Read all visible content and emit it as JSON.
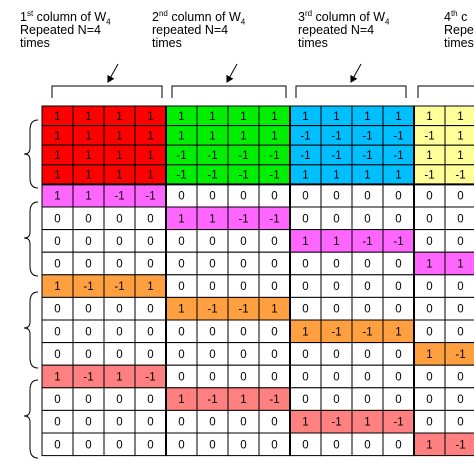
{
  "colors": {
    "red": "#ff0000",
    "green": "#00ee00",
    "blue": "#00bfff",
    "yellow": "#ffff99",
    "magenta": "#ff66ff",
    "orange": "#ffa040",
    "pink": "#ff8080",
    "white": "#ffffff"
  },
  "captions": [
    {
      "line1_prefix": "1",
      "line1_sup": "st",
      "line1_mid": " column of W",
      "line1_sub": "4",
      "line2": "Repeated N=4",
      "line3": "times"
    },
    {
      "line1_prefix": "2",
      "line1_sup": "nd",
      "line1_mid": " column of W",
      "line1_sub": "4",
      "line2": "repeated N=4",
      "line3": "times"
    },
    {
      "line1_prefix": "3",
      "line1_sup": "rd",
      "line1_mid": " column of W",
      "line1_sub": "4",
      "line2": "repeated N=4",
      "line3": "times"
    },
    {
      "line1_prefix": "4",
      "line1_sup": "th",
      "line1_mid": " c",
      "line1_sub": "",
      "line2": "Repeate",
      "line3": "times"
    }
  ],
  "matrix": {
    "rows": [
      {
        "values": [
          "1",
          "1",
          "1",
          "1",
          "1",
          "1",
          "1",
          "1",
          "1",
          "1",
          "1",
          "1",
          "1",
          "1"
        ],
        "colors": [
          "red",
          "red",
          "red",
          "red",
          "green",
          "green",
          "green",
          "green",
          "blue",
          "blue",
          "blue",
          "blue",
          "yellow",
          "yellow"
        ]
      },
      {
        "values": [
          "1",
          "1",
          "1",
          "1",
          "1",
          "1",
          "1",
          "1",
          "-1",
          "-1",
          "-1",
          "-1",
          "-1",
          "1"
        ],
        "colors": [
          "red",
          "red",
          "red",
          "red",
          "green",
          "green",
          "green",
          "green",
          "blue",
          "blue",
          "blue",
          "blue",
          "yellow",
          "yellow"
        ]
      },
      {
        "values": [
          "1",
          "1",
          "1",
          "1",
          "-1",
          "-1",
          "-1",
          "-1",
          "-1",
          "-1",
          "-1",
          "-1",
          "1",
          "1"
        ],
        "colors": [
          "red",
          "red",
          "red",
          "red",
          "green",
          "green",
          "green",
          "green",
          "blue",
          "blue",
          "blue",
          "blue",
          "yellow",
          "yellow"
        ]
      },
      {
        "values": [
          "1",
          "1",
          "1",
          "1",
          "-1",
          "-1",
          "-1",
          "-1",
          "1",
          "1",
          "1",
          "1",
          "-1",
          "-1"
        ],
        "colors": [
          "red",
          "red",
          "red",
          "red",
          "green",
          "green",
          "green",
          "green",
          "blue",
          "blue",
          "blue",
          "blue",
          "yellow",
          "yellow"
        ]
      },
      {
        "values": [
          "1",
          "1",
          "-1",
          "-1",
          "0",
          "0",
          "0",
          "0",
          "0",
          "0",
          "0",
          "0",
          "0",
          "0"
        ],
        "colors": [
          "magenta",
          "magenta",
          "magenta",
          "magenta",
          "white",
          "white",
          "white",
          "white",
          "white",
          "white",
          "white",
          "white",
          "white",
          "white"
        ]
      },
      {
        "values": [
          "0",
          "0",
          "0",
          "0",
          "1",
          "1",
          "-1",
          "-1",
          "0",
          "0",
          "0",
          "0",
          "0",
          "0"
        ],
        "colors": [
          "white",
          "white",
          "white",
          "white",
          "magenta",
          "magenta",
          "magenta",
          "magenta",
          "white",
          "white",
          "white",
          "white",
          "white",
          "white"
        ]
      },
      {
        "values": [
          "0",
          "0",
          "0",
          "0",
          "0",
          "0",
          "0",
          "0",
          "1",
          "1",
          "-1",
          "-1",
          "0",
          "0"
        ],
        "colors": [
          "white",
          "white",
          "white",
          "white",
          "white",
          "white",
          "white",
          "white",
          "magenta",
          "magenta",
          "magenta",
          "magenta",
          "white",
          "white"
        ]
      },
      {
        "values": [
          "0",
          "0",
          "0",
          "0",
          "0",
          "0",
          "0",
          "0",
          "0",
          "0",
          "0",
          "0",
          "1",
          "1"
        ],
        "colors": [
          "white",
          "white",
          "white",
          "white",
          "white",
          "white",
          "white",
          "white",
          "white",
          "white",
          "white",
          "white",
          "magenta",
          "magenta"
        ]
      },
      {
        "values": [
          "1",
          "-1",
          "-1",
          "1",
          "0",
          "0",
          "0",
          "0",
          "0",
          "0",
          "0",
          "0",
          "0",
          "0"
        ],
        "colors": [
          "orange",
          "orange",
          "orange",
          "orange",
          "white",
          "white",
          "white",
          "white",
          "white",
          "white",
          "white",
          "white",
          "white",
          "white"
        ]
      },
      {
        "values": [
          "0",
          "0",
          "0",
          "0",
          "1",
          "-1",
          "-1",
          "1",
          "0",
          "0",
          "0",
          "0",
          "0",
          "0"
        ],
        "colors": [
          "white",
          "white",
          "white",
          "white",
          "orange",
          "orange",
          "orange",
          "orange",
          "white",
          "white",
          "white",
          "white",
          "white",
          "white"
        ]
      },
      {
        "values": [
          "0",
          "0",
          "0",
          "0",
          "0",
          "0",
          "0",
          "0",
          "1",
          "-1",
          "-1",
          "1",
          "0",
          "0"
        ],
        "colors": [
          "white",
          "white",
          "white",
          "white",
          "white",
          "white",
          "white",
          "white",
          "orange",
          "orange",
          "orange",
          "orange",
          "white",
          "white"
        ]
      },
      {
        "values": [
          "0",
          "0",
          "0",
          "0",
          "0",
          "0",
          "0",
          "0",
          "0",
          "0",
          "0",
          "0",
          "1",
          "-1"
        ],
        "colors": [
          "white",
          "white",
          "white",
          "white",
          "white",
          "white",
          "white",
          "white",
          "white",
          "white",
          "white",
          "white",
          "orange",
          "orange"
        ]
      },
      {
        "values": [
          "1",
          "-1",
          "1",
          "-1",
          "0",
          "0",
          "0",
          "0",
          "0",
          "0",
          "0",
          "0",
          "0",
          "0"
        ],
        "colors": [
          "pink",
          "pink",
          "pink",
          "pink",
          "white",
          "white",
          "white",
          "white",
          "white",
          "white",
          "white",
          "white",
          "white",
          "white"
        ]
      },
      {
        "values": [
          "0",
          "0",
          "0",
          "0",
          "1",
          "-1",
          "1",
          "-1",
          "0",
          "0",
          "0",
          "0",
          "0",
          "0"
        ],
        "colors": [
          "white",
          "white",
          "white",
          "white",
          "pink",
          "pink",
          "pink",
          "pink",
          "white",
          "white",
          "white",
          "white",
          "white",
          "white"
        ]
      },
      {
        "values": [
          "0",
          "0",
          "0",
          "0",
          "0",
          "0",
          "0",
          "0",
          "1",
          "-1",
          "1",
          "-1",
          "0",
          "0"
        ],
        "colors": [
          "white",
          "white",
          "white",
          "white",
          "white",
          "white",
          "white",
          "white",
          "pink",
          "pink",
          "pink",
          "pink",
          "white",
          "white"
        ]
      },
      {
        "values": [
          "0",
          "0",
          "0",
          "0",
          "0",
          "0",
          "0",
          "0",
          "0",
          "0",
          "0",
          "0",
          "1",
          "-1"
        ],
        "colors": [
          "white",
          "white",
          "white",
          "white",
          "white",
          "white",
          "white",
          "white",
          "white",
          "white",
          "white",
          "white",
          "pink",
          "pink"
        ]
      }
    ]
  }
}
